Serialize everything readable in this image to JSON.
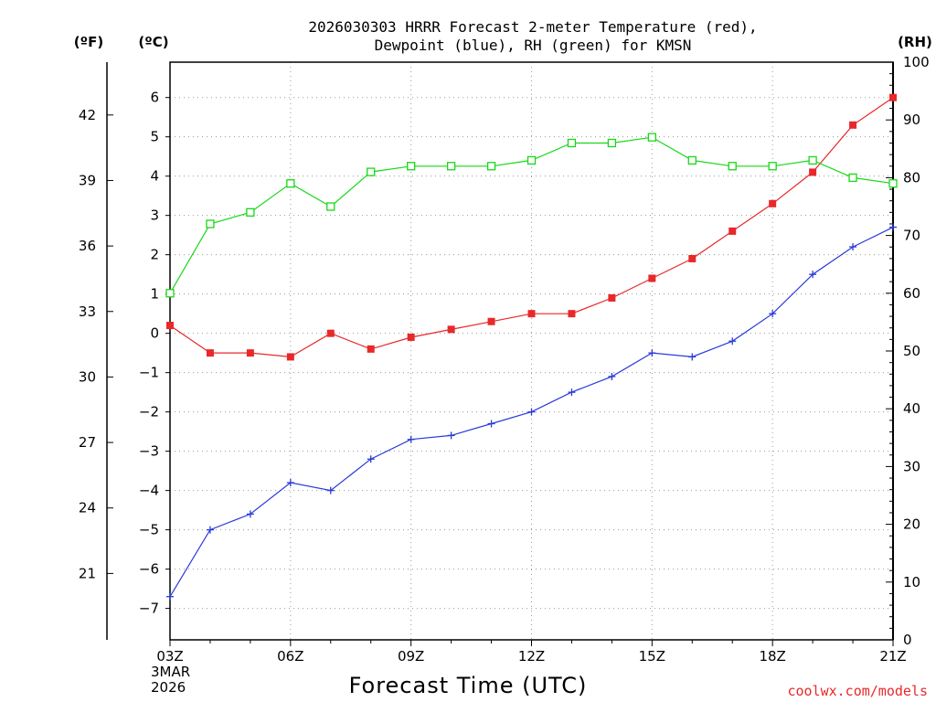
{
  "title_line1": "2026030303 HRRR Forecast 2-meter Temperature (red),",
  "title_line2": "Dewpoint (blue), RH (green) for KMSN",
  "units": {
    "f": "(ºF)",
    "c": "(ºC)",
    "rh": "(RH)"
  },
  "x_axis": {
    "label": "Forecast Time (UTC)",
    "date_lines": [
      "3MAR",
      "2026"
    ]
  },
  "credit": "coolwx.com/models",
  "colors": {
    "temperature": "#e8282a",
    "dewpoint": "#2a3ad8",
    "rh": "#18d818",
    "grid": "#9a9a9a",
    "axis": "#000000"
  },
  "chart_data": {
    "type": "line",
    "hours": [
      3,
      4,
      5,
      6,
      7,
      8,
      9,
      10,
      11,
      12,
      13,
      14,
      15,
      16,
      17,
      18,
      19,
      20,
      21
    ],
    "x_ticks": [
      {
        "hour": 3,
        "label": "03Z"
      },
      {
        "hour": 6,
        "label": "06Z"
      },
      {
        "hour": 9,
        "label": "09Z"
      },
      {
        "hour": 12,
        "label": "12Z"
      },
      {
        "hour": 15,
        "label": "15Z"
      },
      {
        "hour": 18,
        "label": "18Z"
      },
      {
        "hour": 21,
        "label": "21Z"
      }
    ],
    "x_range": [
      3,
      21
    ],
    "celsius_range": [
      -7.8,
      6.9
    ],
    "celsius_ticks": [
      "-7",
      "-6",
      "-5",
      "-4",
      "-3",
      "-2",
      "-1",
      "0",
      "1",
      "2",
      "3",
      "4",
      "5",
      "6"
    ],
    "fahrenheit_ticks": [
      "21",
      "24",
      "27",
      "30",
      "33",
      "36",
      "39",
      "42"
    ],
    "rh_range": [
      0,
      100
    ],
    "rh_ticks": [
      "0",
      "10",
      "20",
      "30",
      "40",
      "50",
      "60",
      "70",
      "80",
      "90",
      "100"
    ],
    "series": [
      {
        "name": "Temperature",
        "units": "C",
        "axis": "celsius",
        "marker": "filled-square",
        "values": [
          0.2,
          -0.5,
          -0.5,
          -0.6,
          0.0,
          -0.4,
          -0.1,
          0.1,
          0.3,
          0.5,
          0.5,
          0.9,
          1.4,
          1.9,
          2.6,
          3.3,
          4.1,
          5.3,
          6.0
        ]
      },
      {
        "name": "Dewpoint",
        "units": "C",
        "axis": "celsius",
        "marker": "plus",
        "values": [
          -6.7,
          -5.0,
          -4.6,
          -3.8,
          -4.0,
          -3.2,
          -2.7,
          -2.6,
          -2.3,
          -2.0,
          -1.5,
          -1.1,
          -0.5,
          -0.6,
          -0.2,
          0.5,
          1.5,
          2.2,
          2.7
        ]
      },
      {
        "name": "RH",
        "units": "%",
        "axis": "rh",
        "marker": "open-square",
        "values": [
          60,
          72,
          74,
          79,
          75,
          81,
          82,
          82,
          82,
          83,
          86,
          86,
          87,
          83,
          82,
          82,
          83,
          80,
          79
        ]
      }
    ]
  }
}
